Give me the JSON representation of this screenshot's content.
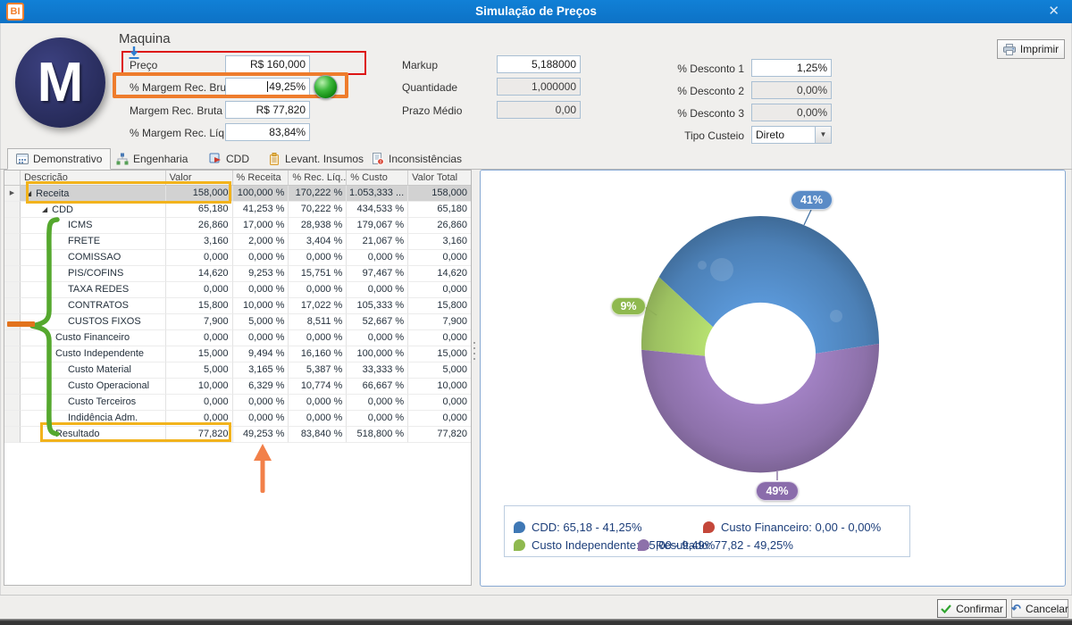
{
  "titlebar": {
    "logo": "BI",
    "title": "Simulação de Preços",
    "close": "✕"
  },
  "header": {
    "product": "Maquina",
    "avatar": "M",
    "print": "Imprimir",
    "left": [
      {
        "label": "Preço",
        "value": "R$ 160,000"
      },
      {
        "label": "% Margem Rec. Bruta",
        "value": "49,25%"
      },
      {
        "label": "Margem Rec. Bruta",
        "value": "R$ 77,820"
      },
      {
        "label": "% Margem Rec. Líq.",
        "value": "83,84%"
      }
    ],
    "mid": [
      {
        "label": "Markup",
        "value": "5,188000"
      },
      {
        "label": "Quantidade",
        "value": "1,000000"
      },
      {
        "label": "Prazo Médio",
        "value": "0,00"
      }
    ],
    "right": [
      {
        "label": "% Desconto 1",
        "value": "1,25%"
      },
      {
        "label": "% Desconto 2",
        "value": "0,00%"
      },
      {
        "label": "% Desconto 3",
        "value": "0,00%"
      }
    ],
    "custeio": {
      "label": "Tipo Custeio",
      "value": "Direto"
    }
  },
  "tabs": [
    {
      "label": "Demonstrativo",
      "active": true
    },
    {
      "label": "Engenharia",
      "active": false
    },
    {
      "label": "CDD",
      "active": false
    },
    {
      "label": "Levant. Insumos",
      "active": false
    },
    {
      "label": "Inconsistências",
      "active": false
    }
  ],
  "grid": {
    "columns": [
      "Descrição",
      "Valor",
      "% Receita",
      "% Rec. Líq...",
      "% Custo",
      "Valor Total"
    ],
    "rows": [
      {
        "desc": "Receita",
        "level": 0,
        "glyph": true,
        "selected": true,
        "v": [
          "158,000",
          "100,000 %",
          "170,222 %",
          "1.053,333 ...",
          "158,000"
        ]
      },
      {
        "desc": "CDD",
        "level": 1,
        "glyph": true,
        "selected": false,
        "v": [
          "65,180",
          "41,253 %",
          "70,222 %",
          "434,533 %",
          "65,180"
        ]
      },
      {
        "desc": "ICMS",
        "level": 2,
        "glyph": false,
        "selected": false,
        "v": [
          "26,860",
          "17,000 %",
          "28,938 %",
          "179,067 %",
          "26,860"
        ]
      },
      {
        "desc": "FRETE",
        "level": 2,
        "glyph": false,
        "selected": false,
        "v": [
          "3,160",
          "2,000 %",
          "3,404 %",
          "21,067 %",
          "3,160"
        ]
      },
      {
        "desc": "COMISSAO",
        "level": 2,
        "glyph": false,
        "selected": false,
        "v": [
          "0,000",
          "0,000 %",
          "0,000 %",
          "0,000 %",
          "0,000"
        ]
      },
      {
        "desc": "PIS/COFINS",
        "level": 2,
        "glyph": false,
        "selected": false,
        "v": [
          "14,620",
          "9,253 %",
          "15,751 %",
          "97,467 %",
          "14,620"
        ]
      },
      {
        "desc": "TAXA REDES",
        "level": 2,
        "glyph": false,
        "selected": false,
        "v": [
          "0,000",
          "0,000 %",
          "0,000 %",
          "0,000 %",
          "0,000"
        ]
      },
      {
        "desc": "CONTRATOS",
        "level": 2,
        "glyph": false,
        "selected": false,
        "v": [
          "15,800",
          "10,000 %",
          "17,022 %",
          "105,333 %",
          "15,800"
        ]
      },
      {
        "desc": "CUSTOS FIXOS",
        "level": 2,
        "glyph": false,
        "selected": false,
        "v": [
          "7,900",
          "5,000 %",
          "8,511 %",
          "52,667 %",
          "7,900"
        ]
      },
      {
        "desc": "Custo Financeiro",
        "level": 1,
        "glyph": false,
        "selected": false,
        "v": [
          "0,000",
          "0,000 %",
          "0,000 %",
          "0,000 %",
          "0,000"
        ]
      },
      {
        "desc": "Custo Independente",
        "level": 1,
        "glyph": false,
        "selected": false,
        "v": [
          "15,000",
          "9,494 %",
          "16,160 %",
          "100,000 %",
          "15,000"
        ]
      },
      {
        "desc": "Custo Material",
        "level": 2,
        "glyph": false,
        "selected": false,
        "v": [
          "5,000",
          "3,165 %",
          "5,387 %",
          "33,333 %",
          "5,000"
        ]
      },
      {
        "desc": "Custo Operacional",
        "level": 2,
        "glyph": false,
        "selected": false,
        "v": [
          "10,000",
          "6,329 %",
          "10,774 %",
          "66,667 %",
          "10,000"
        ]
      },
      {
        "desc": "Custo Terceiros",
        "level": 2,
        "glyph": false,
        "selected": false,
        "v": [
          "0,000",
          "0,000 %",
          "0,000 %",
          "0,000 %",
          "0,000"
        ]
      },
      {
        "desc": "Indidência Adm.",
        "level": 2,
        "glyph": false,
        "selected": false,
        "v": [
          "0,000",
          "0,000 %",
          "0,000 %",
          "0,000 %",
          "0,000"
        ]
      },
      {
        "desc": "Resultado",
        "level": 1,
        "glyph": false,
        "selected": false,
        "v": [
          "77,820",
          "49,253 %",
          "83,840 %",
          "518,800 %",
          "77,820"
        ]
      }
    ]
  },
  "chart_data": {
    "type": "pie",
    "donut": true,
    "series": [
      {
        "name": "CDD",
        "value": "65,18",
        "pct": 41.25,
        "label": "41%",
        "color": "#4c80b6",
        "pill": "#5a8bc6"
      },
      {
        "name": "Custo Financeiro",
        "value": "0,00",
        "pct": 0.0,
        "label": "",
        "color": "#c4473a",
        "pill": "#c4473a"
      },
      {
        "name": "Custo Independente",
        "value": "15,00",
        "pct": 9.49,
        "label": "9%",
        "color": "#9dc161",
        "pill": "#8fb94f"
      },
      {
        "name": "Resultado",
        "value": "77,82",
        "pct": 49.25,
        "label": "49%",
        "color": "#8d71aa",
        "pill": "#8a6cab"
      }
    ],
    "legend_position": "bottom",
    "legend_rows": [
      [
        {
          "text": "CDD: 65,18 - 41,25%",
          "color": "#3f78b5"
        },
        {
          "text": "Custo Financeiro: 0,00 - 0,00%",
          "color": "#c4473a"
        }
      ],
      [
        {
          "text": "Custo Independente: 15,00 - 9,49%",
          "color": "#8fb94f"
        },
        {
          "text": "Resultado: 77,82 - 49,25%",
          "color": "#8d71aa"
        }
      ]
    ]
  },
  "footer": {
    "confirm": "Confirmar",
    "cancel": "Cancelar"
  }
}
